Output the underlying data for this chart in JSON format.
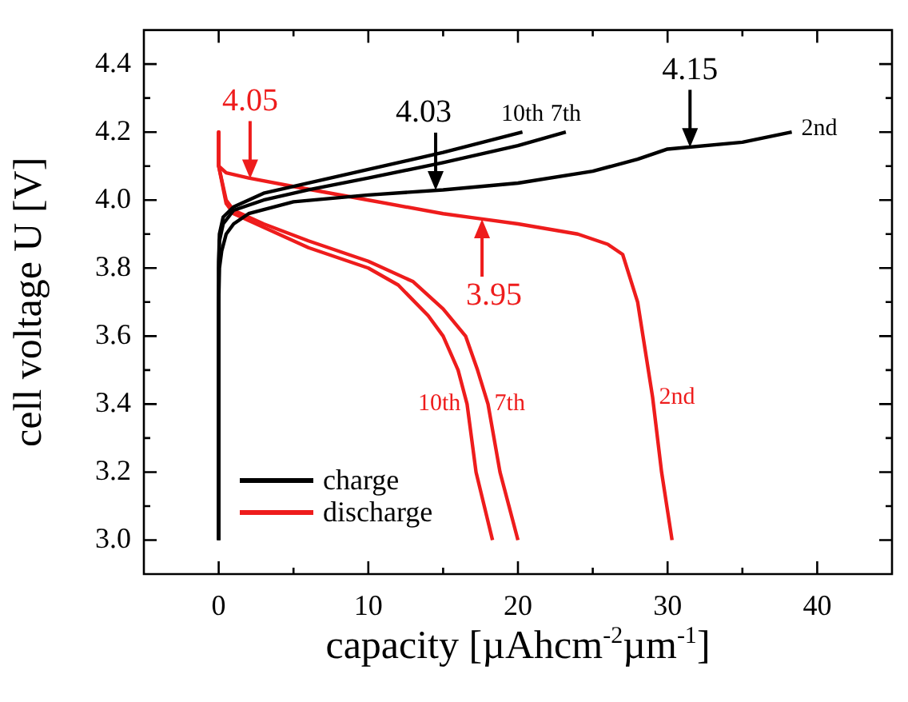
{
  "chart_data": {
    "type": "line",
    "xlabel": "capacity [µAhcm$^{-2}$µm$^{-1}$]",
    "ylabel": "cell voltage U [V]",
    "xlim": [
      -5,
      45
    ],
    "ylim": [
      2.9,
      4.5
    ],
    "xticks": [
      0,
      {
        "value": 5,
        "label": null
      },
      10,
      {
        "value": 15,
        "label": null
      },
      20,
      {
        "value": 25,
        "label": null
      },
      30,
      {
        "value": 35,
        "label": null
      },
      40
    ],
    "yticks": [
      {
        "value": 3,
        "label": "3.0"
      },
      {
        "value": 3.1,
        "label": null
      },
      {
        "value": 3.2,
        "label": "3.2"
      },
      {
        "value": 3.3,
        "label": null
      },
      {
        "value": 3.4,
        "label": "3.4"
      },
      {
        "value": 3.5,
        "label": null
      },
      {
        "value": 3.6,
        "label": "3.6"
      },
      {
        "value": 3.7,
        "label": null
      },
      {
        "value": 3.8,
        "label": "3.8"
      },
      {
        "value": 3.9,
        "label": null
      },
      {
        "value": 4,
        "label": "4.0"
      },
      {
        "value": 4.1,
        "label": null
      },
      {
        "value": 4.2,
        "label": "4.2"
      },
      {
        "value": 4.3,
        "label": null
      },
      {
        "value": 4.4,
        "label": "4.4"
      }
    ],
    "legend": "bottom left",
    "marker": "none",
    "line_style": "solid",
    "series": [
      {
        "name": "charge",
        "color": "#000000",
        "x": [
          0,
          0,
          0.05,
          0.2,
          0.5,
          1,
          2,
          5,
          10,
          15,
          20,
          25,
          28,
          30,
          35,
          38.3
        ],
        "values": [
          3.0,
          3.7,
          3.8,
          3.85,
          3.9,
          3.93,
          3.96,
          3.995,
          4.015,
          4.03,
          4.05,
          4.085,
          4.12,
          4.15,
          4.17,
          4.2
        ]
      },
      {
        "color": "#000000",
        "x": [
          0,
          0,
          0.05,
          0.3,
          1,
          3,
          6,
          10,
          15,
          20,
          23.2
        ],
        "values": [
          3.0,
          3.8,
          3.88,
          3.93,
          3.97,
          4.0,
          4.03,
          4.065,
          4.11,
          4.16,
          4.2
        ]
      },
      {
        "color": "#000000",
        "x": [
          0,
          0,
          0.05,
          0.3,
          1,
          3,
          6,
          10,
          15,
          20.3
        ],
        "values": [
          3.0,
          3.82,
          3.9,
          3.95,
          3.98,
          4.02,
          4.05,
          4.09,
          4.14,
          4.2
        ]
      },
      {
        "name": "discharge",
        "color": "#ee1c1c",
        "x": [
          0,
          0,
          0.5,
          2,
          5,
          10,
          15,
          17.5,
          20,
          24,
          26,
          27,
          28,
          28.5,
          29,
          29.6,
          30.3
        ],
        "values": [
          4.2,
          4.1,
          4.08,
          4.065,
          4.04,
          4.0,
          3.96,
          3.945,
          3.93,
          3.9,
          3.87,
          3.84,
          3.7,
          3.56,
          3.42,
          3.2,
          3.0
        ]
      },
      {
        "color": "#ee1c1c",
        "x": [
          0,
          0,
          0.5,
          1,
          3,
          6,
          10,
          13,
          15,
          16.5,
          17.3,
          18,
          18.8,
          20
        ],
        "values": [
          4.2,
          4.1,
          4.0,
          3.97,
          3.93,
          3.88,
          3.82,
          3.76,
          3.68,
          3.6,
          3.5,
          3.4,
          3.2,
          3.0
        ]
      },
      {
        "color": "#ee1c1c",
        "x": [
          0,
          0,
          0.5,
          1,
          3,
          6,
          10,
          12,
          14,
          15,
          16,
          16.6,
          17.2,
          18.3
        ],
        "values": [
          4.2,
          4.1,
          3.99,
          3.96,
          3.92,
          3.86,
          3.8,
          3.75,
          3.66,
          3.6,
          3.5,
          3.4,
          3.2,
          3.0
        ]
      }
    ],
    "annotations": [
      {
        "text": "4.05",
        "x": 2.1,
        "y": 4.063
      },
      {
        "text": "4.03",
        "x": 14.5,
        "y": 4.029
      },
      {
        "text": "3.95",
        "x": 17.6,
        "y": 3.944
      },
      {
        "text": "4.15",
        "x": 31.5,
        "y": 4.155
      },
      {
        "text": "10th",
        "x": 20.3,
        "y": 4.2
      },
      {
        "text": "7th",
        "x": 23.2,
        "y": 4.2
      },
      {
        "text": "2nd",
        "x": 38.3,
        "y": 4.2
      },
      {
        "text": "10th",
        "x": 16.6,
        "y": 3.4
      },
      {
        "text": "7th",
        "x": 18,
        "y": 3.4
      },
      {
        "text": "2nd",
        "x": 29,
        "y": 3.42
      }
    ]
  }
}
